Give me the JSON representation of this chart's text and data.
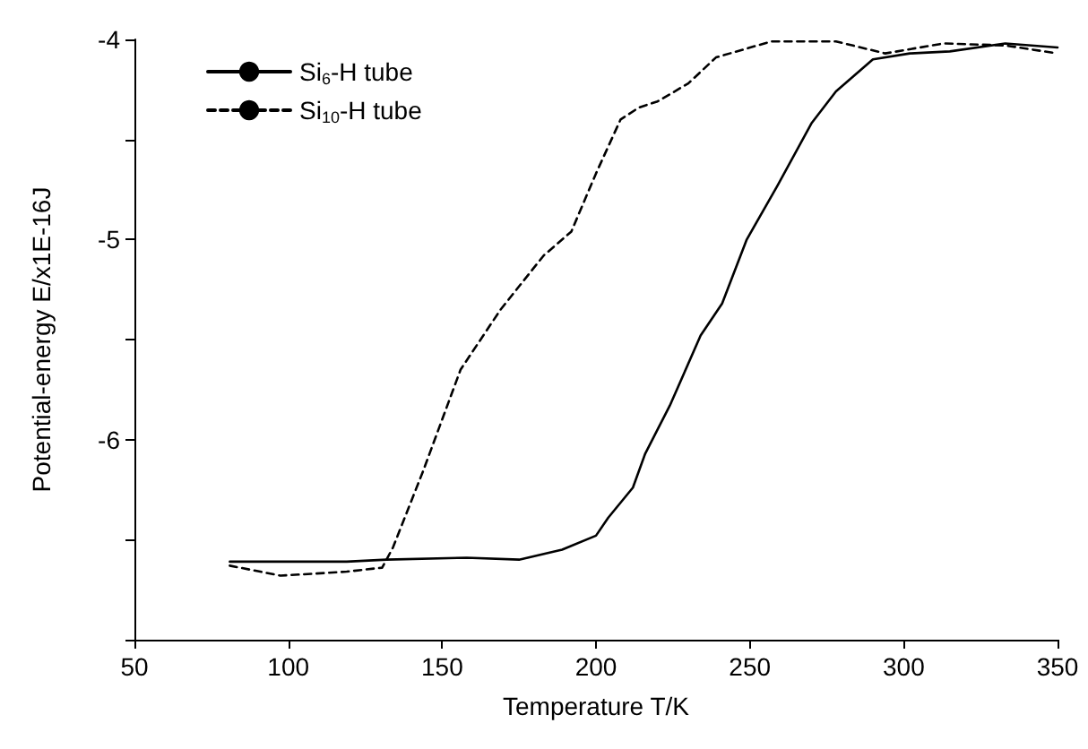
{
  "chart_data": {
    "type": "line",
    "xlabel": "Temperature T/K",
    "ylabel": "Potential-energy E/x1E-16J",
    "xlim": [
      50,
      350
    ],
    "xticks": [
      50,
      100,
      150,
      200,
      250,
      300,
      350
    ],
    "ylim": [
      -7,
      -4
    ],
    "yticks": [
      {
        "value": -7,
        "label": null
      },
      {
        "value": -6.5,
        "label": null
      },
      -6,
      {
        "value": -5.5,
        "label": null
      },
      -5,
      {
        "value": -4.5,
        "label": null
      },
      -4
    ],
    "grid": false,
    "legend": "top left",
    "marker": "none",
    "series": [
      {
        "name": "Si$_{6}$-H tube",
        "color": "#000000",
        "line_style": "solid",
        "x": [
          81,
          119,
          132,
          158,
          175,
          189,
          200,
          204,
          212,
          216,
          224,
          234,
          241,
          249,
          259,
          270,
          278,
          290,
          302,
          315,
          333,
          350
        ],
        "values": [
          -6.61,
          -6.61,
          -6.6,
          -6.59,
          -6.6,
          -6.55,
          -6.48,
          -6.39,
          -6.24,
          -6.07,
          -5.83,
          -5.48,
          -5.32,
          -5.0,
          -4.73,
          -4.42,
          -4.26,
          -4.1,
          -4.07,
          -4.06,
          -4.02,
          -4.04
        ]
      },
      {
        "name": "Si$_{10}$-H tube",
        "color": "#000000",
        "line_style": "dashed",
        "x": [
          81,
          97.5,
          119,
          130.5,
          134,
          144,
          156,
          169,
          183,
          192,
          200,
          208,
          214,
          220,
          230,
          239,
          257,
          278,
          294,
          313,
          333,
          350
        ],
        "values": [
          -6.63,
          -6.68,
          -6.66,
          -6.64,
          -6.54,
          -6.15,
          -5.65,
          -5.35,
          -5.08,
          -4.96,
          -4.67,
          -4.4,
          -4.34,
          -4.31,
          -4.22,
          -4.09,
          -4.01,
          -4.01,
          -4.07,
          -4.02,
          -4.03,
          -4.07
        ]
      }
    ]
  }
}
